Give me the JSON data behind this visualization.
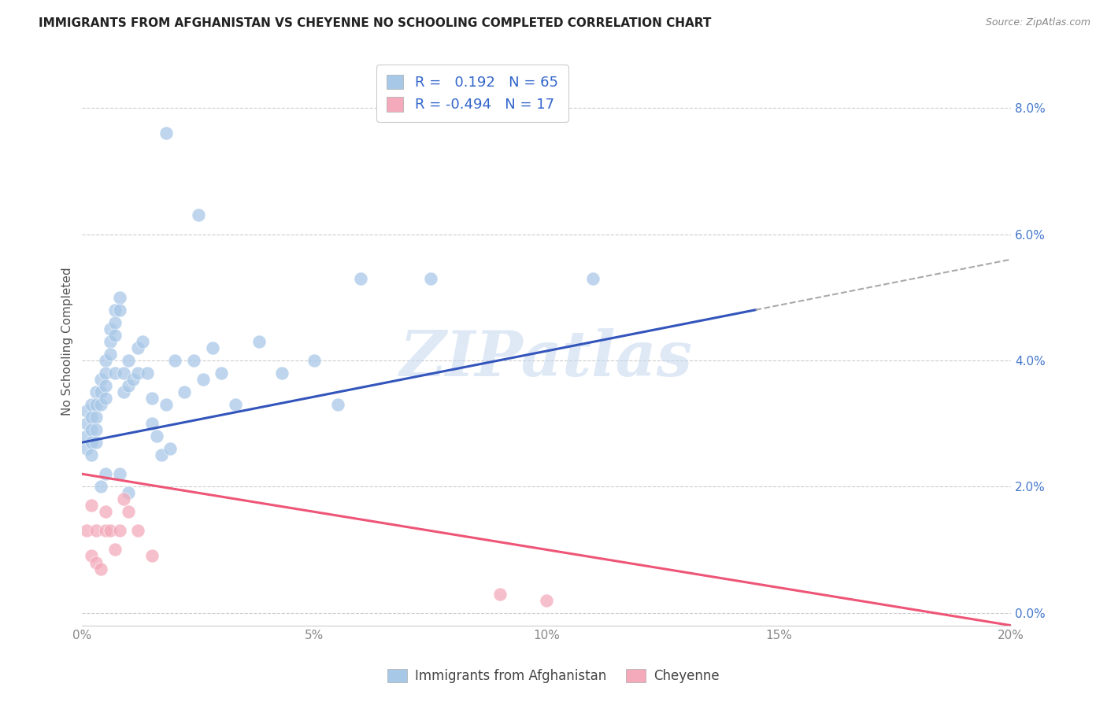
{
  "title": "IMMIGRANTS FROM AFGHANISTAN VS CHEYENNE NO SCHOOLING COMPLETED CORRELATION CHART",
  "source": "Source: ZipAtlas.com",
  "ylabel": "No Schooling Completed",
  "legend_label1": "Immigrants from Afghanistan",
  "legend_label2": "Cheyenne",
  "r1": 0.192,
  "n1": 65,
  "r2": -0.494,
  "n2": 17,
  "xlim": [
    0.0,
    0.2
  ],
  "ylim": [
    -0.002,
    0.088
  ],
  "xticks": [
    0.0,
    0.05,
    0.1,
    0.15,
    0.2
  ],
  "yticks": [
    0.0,
    0.02,
    0.04,
    0.06,
    0.08
  ],
  "color_blue": "#A8C8E8",
  "color_pink": "#F4AABB",
  "line_blue": "#3355BB",
  "line_pink": "#EE5577",
  "dash_color": "#AAAAAA",
  "watermark": "ZIPatlas",
  "blue_x": [
    0.001,
    0.001,
    0.001,
    0.001,
    0.002,
    0.002,
    0.002,
    0.002,
    0.002,
    0.003,
    0.003,
    0.003,
    0.003,
    0.003,
    0.004,
    0.004,
    0.004,
    0.004,
    0.005,
    0.005,
    0.005,
    0.005,
    0.005,
    0.006,
    0.006,
    0.006,
    0.007,
    0.007,
    0.007,
    0.007,
    0.008,
    0.008,
    0.008,
    0.009,
    0.009,
    0.01,
    0.01,
    0.01,
    0.011,
    0.012,
    0.012,
    0.013,
    0.014,
    0.015,
    0.015,
    0.016,
    0.017,
    0.018,
    0.019,
    0.02,
    0.022,
    0.024,
    0.026,
    0.028,
    0.03,
    0.033,
    0.038,
    0.043,
    0.05,
    0.055,
    0.075,
    0.018,
    0.025,
    0.06,
    0.11
  ],
  "blue_y": [
    0.03,
    0.032,
    0.028,
    0.026,
    0.033,
    0.031,
    0.029,
    0.027,
    0.025,
    0.035,
    0.033,
    0.031,
    0.029,
    0.027,
    0.037,
    0.035,
    0.033,
    0.02,
    0.04,
    0.038,
    0.036,
    0.034,
    0.022,
    0.045,
    0.043,
    0.041,
    0.048,
    0.046,
    0.044,
    0.038,
    0.05,
    0.048,
    0.022,
    0.038,
    0.035,
    0.04,
    0.036,
    0.019,
    0.037,
    0.042,
    0.038,
    0.043,
    0.038,
    0.034,
    0.03,
    0.028,
    0.025,
    0.033,
    0.026,
    0.04,
    0.035,
    0.04,
    0.037,
    0.042,
    0.038,
    0.033,
    0.043,
    0.038,
    0.04,
    0.033,
    0.053,
    0.076,
    0.063,
    0.053,
    0.053
  ],
  "pink_x": [
    0.001,
    0.002,
    0.002,
    0.003,
    0.003,
    0.004,
    0.005,
    0.005,
    0.006,
    0.007,
    0.008,
    0.009,
    0.01,
    0.012,
    0.015,
    0.09,
    0.1
  ],
  "pink_y": [
    0.013,
    0.009,
    0.017,
    0.008,
    0.013,
    0.007,
    0.016,
    0.013,
    0.013,
    0.01,
    0.013,
    0.018,
    0.016,
    0.013,
    0.009,
    0.003,
    0.002
  ],
  "blue_line_x0": 0.0,
  "blue_line_y0": 0.027,
  "blue_line_x1": 0.145,
  "blue_line_y1": 0.048,
  "dash_line_x0": 0.145,
  "dash_line_y0": 0.048,
  "dash_line_x1": 0.2,
  "dash_line_y1": 0.056,
  "pink_line_x0": 0.0,
  "pink_line_y0": 0.022,
  "pink_line_x1": 0.2,
  "pink_line_y1": -0.002
}
